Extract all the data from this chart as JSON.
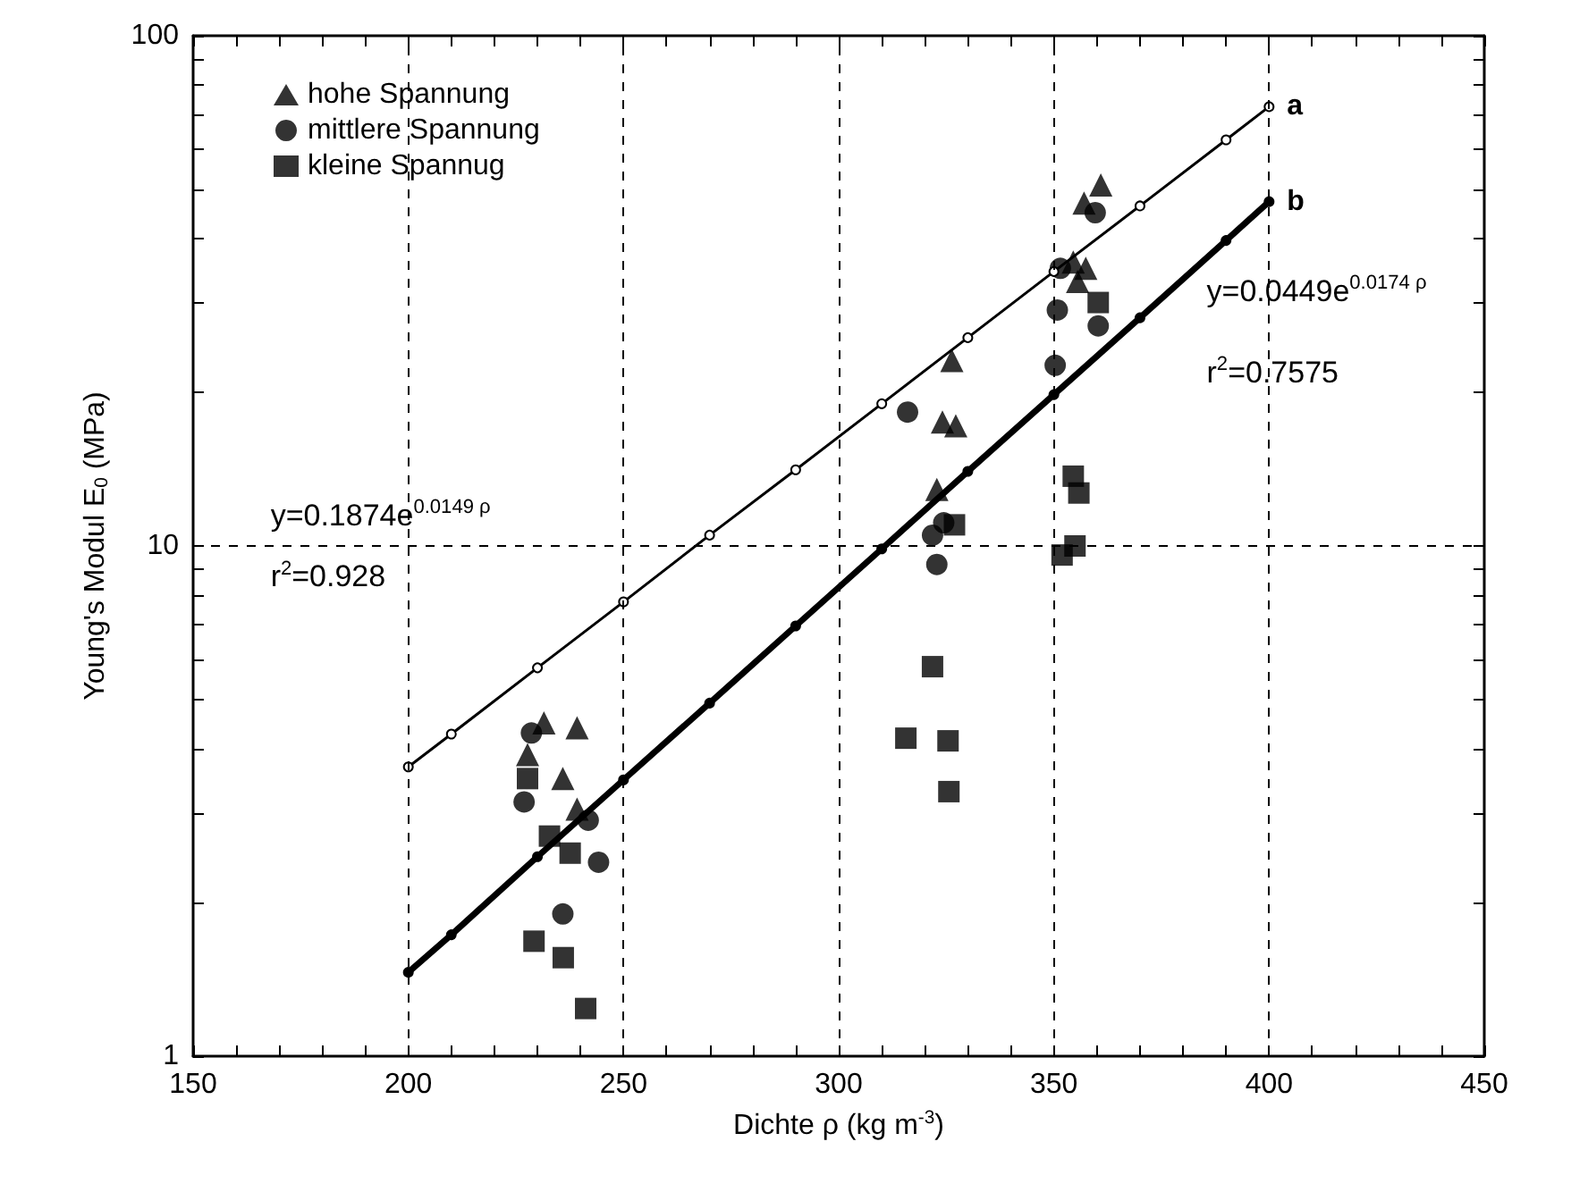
{
  "chart_data": {
    "type": "scatter",
    "xlabel": "Dichte ρ (kg m$^{-3}$)",
    "ylabel": "Young's Modul E$_{0}$ (MPa)",
    "xlim": [
      150,
      450
    ],
    "xticks": [
      150,
      {
        "value": 160,
        "label": null
      },
      {
        "value": 170,
        "label": null
      },
      {
        "value": 180,
        "label": null
      },
      {
        "value": 190,
        "label": null
      },
      200,
      {
        "value": 210,
        "label": null
      },
      {
        "value": 220,
        "label": null
      },
      {
        "value": 230,
        "label": null
      },
      {
        "value": 240,
        "label": null
      },
      250,
      {
        "value": 260,
        "label": null
      },
      {
        "value": 270,
        "label": null
      },
      {
        "value": 280,
        "label": null
      },
      {
        "value": 290,
        "label": null
      },
      300,
      {
        "value": 310,
        "label": null
      },
      {
        "value": 320,
        "label": null
      },
      {
        "value": 330,
        "label": null
      },
      {
        "value": 340,
        "label": null
      },
      350,
      {
        "value": 360,
        "label": null
      },
      {
        "value": 370,
        "label": null
      },
      {
        "value": 380,
        "label": null
      },
      {
        "value": 390,
        "label": null
      },
      400,
      {
        "value": 410,
        "label": null
      },
      {
        "value": 420,
        "label": null
      },
      {
        "value": 430,
        "label": null
      },
      {
        "value": 440,
        "label": null
      },
      450
    ],
    "ylim": [
      1,
      100
    ],
    "yticks": [
      1,
      {
        "value": 2,
        "label": null
      },
      {
        "value": 3,
        "label": null
      },
      {
        "value": 4,
        "label": null
      },
      {
        "value": 5,
        "label": null
      },
      {
        "value": 6,
        "label": null
      },
      {
        "value": 7,
        "label": null
      },
      {
        "value": 8,
        "label": null
      },
      {
        "value": 9,
        "label": null
      },
      10,
      {
        "value": 20,
        "label": null
      },
      {
        "value": 30,
        "label": null
      },
      {
        "value": 40,
        "label": null
      },
      {
        "value": 50,
        "label": null
      },
      {
        "value": 60,
        "label": null
      },
      {
        "value": 70,
        "label": null
      },
      {
        "value": 80,
        "label": null
      },
      {
        "value": 90,
        "label": null
      },
      100
    ],
    "log": "y",
    "grid": true,
    "legend": "top left",
    "series": [
      {
        "name": "hohe Spannung",
        "color": "#000000",
        "marker": "triangle",
        "x": [
          231.5,
          239.2,
          227.7,
          235.9,
          239.2,
          326.3,
          324.1,
          327.2,
          322.8,
          360.9,
          357.4,
          357,
          355.5,
          354.5
        ],
        "values": [
          4.5,
          4.4,
          3.9,
          3.5,
          3.05,
          23.1,
          17.5,
          17.2,
          12.9,
          51,
          35,
          47,
          33,
          36
        ]
      },
      {
        "name": "mittlere Spannung",
        "color": "#000000",
        "marker": "circle",
        "x": [
          228.6,
          226.9,
          241.8,
          244.2,
          235.9,
          316,
          324.4,
          321.8,
          322.8,
          350.3,
          351.5,
          350.8,
          359.6,
          360.3
        ],
        "values": [
          4.3,
          3.15,
          2.9,
          2.4,
          1.9,
          18.3,
          11.1,
          10.5,
          9.2,
          22.6,
          35,
          29,
          45,
          27
        ]
      },
      {
        "name": "kleine Spannug",
        "color": "#000000",
        "marker": "square",
        "x": [
          227.7,
          232.8,
          237.6,
          229.2,
          236,
          241.2,
          326.9,
          354.5,
          355.8,
          354.9,
          351.9,
          321.8,
          315.6,
          325.4,
          325.6,
          360.3
        ],
        "values": [
          3.5,
          2.7,
          2.5,
          1.68,
          1.56,
          1.24,
          11.0,
          13.7,
          12.7,
          10.0,
          9.6,
          5.8,
          4.2,
          4.15,
          3.3,
          30
        ]
      },
      {
        "name": "a",
        "type": "line",
        "color": "#000000",
        "marker": "circle",
        "line_style": "solid",
        "x": [
          200,
          210,
          230,
          250,
          270,
          290,
          310,
          330,
          350,
          370,
          390,
          400
        ],
        "values": [
          3.69,
          4.28,
          5.77,
          7.77,
          10.5,
          14.1,
          19.0,
          25.6,
          34.5,
          46.4,
          62.5,
          72.6
        ]
      },
      {
        "name": "b",
        "type": "line",
        "color": "#000000",
        "marker": "circle",
        "line_style": "solid",
        "x": [
          200,
          210,
          230,
          250,
          270,
          290,
          310,
          330,
          350,
          370,
          390,
          400
        ],
        "values": [
          1.46,
          1.73,
          2.46,
          3.48,
          4.92,
          6.97,
          9.87,
          14.0,
          19.8,
          28.0,
          39.7,
          47.3
        ]
      }
    ],
    "annotations": [
      "y=0.1874e$^{0.0149 ρ}$",
      "r$^{2}$=0.928",
      "y=0.0449e$^{0.0174 ρ}$",
      "r$^{2}$=0.7575"
    ]
  }
}
